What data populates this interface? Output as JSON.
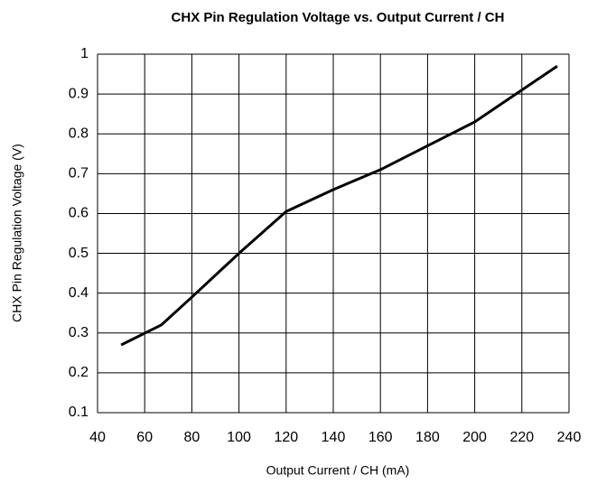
{
  "chart_data": {
    "type": "line",
    "title": "CHX Pin Regulation Voltage vs. Output Current / CH",
    "x_label": "Output Current / CH (mA)",
    "y_label": "CHX Pin Regulation Voltage (V)",
    "x": [
      50,
      67,
      80,
      100,
      120,
      140,
      160,
      180,
      200,
      215,
      235
    ],
    "series": [
      {
        "name": "CHX Pin Regulation Voltage",
        "color": "#000000",
        "values": [
          0.27,
          0.32,
          0.39,
          0.5,
          0.605,
          0.66,
          0.71,
          0.77,
          0.83,
          0.89,
          0.97
        ]
      }
    ],
    "xlim": [
      40,
      240
    ],
    "xticks": [
      40,
      60,
      80,
      100,
      120,
      140,
      160,
      180,
      200,
      220,
      240
    ],
    "ylim": [
      0.1,
      1
    ],
    "yticks": [
      0.1,
      0.2,
      0.3,
      0.4,
      0.5,
      0.6,
      0.7,
      0.8,
      0.9,
      1
    ],
    "grid": true
  }
}
